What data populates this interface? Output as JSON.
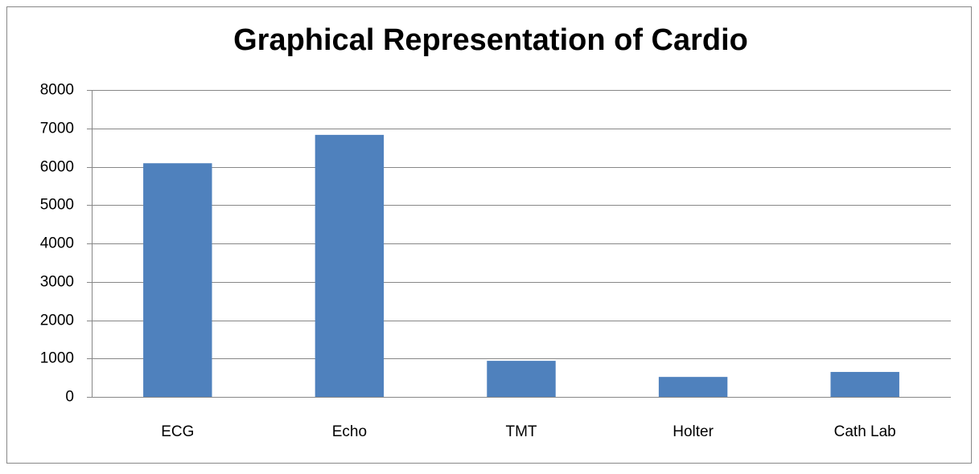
{
  "chart_data": {
    "type": "bar",
    "title": "Graphical Representation of Cardio",
    "categories": [
      "ECG",
      "Echo",
      "TMT",
      "Holter",
      "Cath Lab"
    ],
    "values": [
      6090,
      6830,
      940,
      520,
      650
    ],
    "color": "#4f81bd",
    "ylim": [
      0,
      8000
    ],
    "yticks": [
      0,
      1000,
      2000,
      3000,
      4000,
      5000,
      6000,
      7000,
      8000
    ],
    "grid": true
  }
}
